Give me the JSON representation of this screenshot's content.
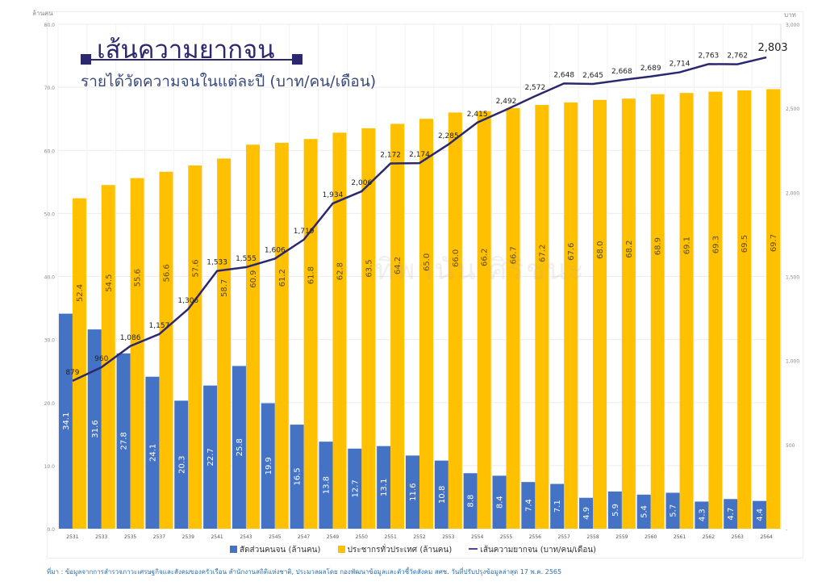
{
  "header": {
    "title": "เส้นความยากจน",
    "subtitle": "รายได้วัดความจนในแต่ละปี (บาท/คน/เดือน)",
    "watermark": "ทิพานัน ศิริชนะ"
  },
  "footer": {
    "source": "ที่มา : ข้อมูลจากการสำรวจภาวะเศรษฐกิจและสังคมของครัวเรือน สำนักงานสถิติแห่งชาติ, ประมวลผลโดย กองพัฒนาข้อมูลและตัวชี้วัดสังคม สศช.   วันที่ปรับปรุงข้อมูลล่าสุด 17 พ.ค. 2565"
  },
  "chart_data": {
    "type": "bar",
    "title": "เส้นความยากจน",
    "ylabel": "ล้านคน",
    "y2label": "บาท",
    "ylim": [
      0,
      80
    ],
    "y2lim": [
      0,
      3000
    ],
    "yticks": [
      "0.0",
      "10.0",
      "20.0",
      "30.0",
      "40.0",
      "50.0",
      "60.0",
      "70.0",
      "80.0"
    ],
    "y2ticks": [
      "-",
      "500",
      "1,000",
      "1,500",
      "2,000",
      "2,500",
      "3,000"
    ],
    "legend_position": "bottom",
    "categories": [
      "2531",
      "2533",
      "2535",
      "2537",
      "2539",
      "2541",
      "2543",
      "2545",
      "2547",
      "2549",
      "2550",
      "2551",
      "2552",
      "2553",
      "2554",
      "2555",
      "2556",
      "2557",
      "2558",
      "2559",
      "2560",
      "2561",
      "2562",
      "2563",
      "2564"
    ],
    "series": [
      {
        "name": "สัดส่วนคนจน (ล้านคน)",
        "type": "bar",
        "color": "#4472c4",
        "values": [
          34.1,
          31.6,
          27.8,
          24.1,
          20.3,
          22.7,
          25.8,
          19.9,
          16.5,
          13.8,
          12.7,
          13.1,
          11.6,
          10.8,
          8.8,
          8.4,
          7.4,
          7.1,
          4.9,
          5.9,
          5.4,
          5.7,
          4.3,
          4.7,
          4.4
        ]
      },
      {
        "name": "ประชากรทั่วประเทศ (ล้านคน)",
        "type": "bar",
        "color": "#ffc000",
        "values": [
          52.4,
          54.5,
          55.6,
          56.6,
          57.6,
          58.7,
          60.9,
          61.2,
          61.8,
          62.8,
          63.5,
          64.2,
          65.0,
          66.0,
          66.2,
          66.7,
          67.2,
          67.6,
          68.0,
          68.2,
          68.9,
          69.1,
          69.3,
          69.5,
          69.7
        ]
      },
      {
        "name": "เส้นความยากจน (บาท/คน/เดือน)",
        "type": "line",
        "axis": "right",
        "color": "#2b2870",
        "values": [
          879,
          960,
          1086,
          1157,
          1306,
          1533,
          1555,
          1606,
          1719,
          1934,
          2006,
          2172,
          2174,
          2285,
          2415,
          2492,
          2572,
          2648,
          2645,
          2668,
          2689,
          2714,
          2763,
          2762,
          2803
        ],
        "labels": [
          "879",
          "960",
          "1,086",
          "1,157",
          "1,306",
          "1,533",
          "1,555",
          "1,606",
          "1,719",
          "1,934",
          "2,006",
          "2,172",
          "2,174",
          "2,285",
          "2,415",
          "2,492",
          "2,572",
          "2,648",
          "2,645",
          "2,668",
          "2,689",
          "2,714",
          "2,763",
          "2,762",
          "2,803"
        ]
      }
    ]
  }
}
